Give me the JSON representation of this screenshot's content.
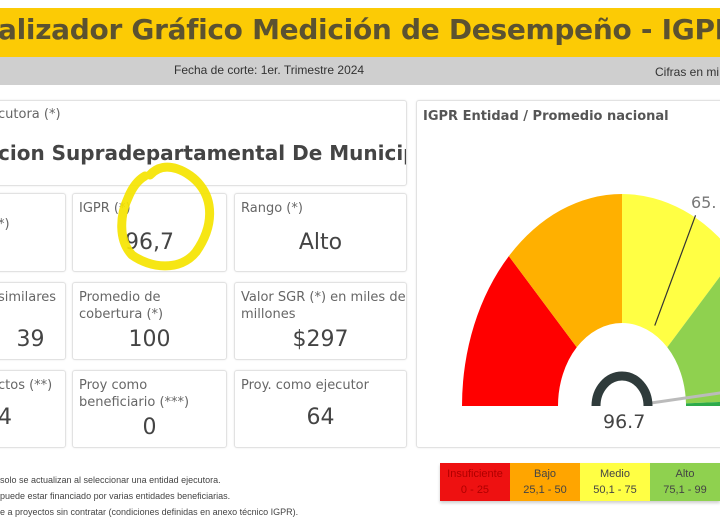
{
  "header": {
    "title": "alizador Gráfico Medición de Desempeño - IGPR",
    "cutoff": "Fecha de corte: 1er. Trimestre 2024",
    "figures_note": "Cifras en mi"
  },
  "entity": {
    "label": "cutora (*)",
    "name": "cion Supradepartamental De Municipi..."
  },
  "cards": [
    {
      "label": "*)",
      "value": ""
    },
    {
      "label": "IGPR (*)",
      "value": "96,7"
    },
    {
      "label": "Rango (*)",
      "value": "Alto"
    },
    {
      "label": "similares",
      "value": "39"
    },
    {
      "label": "Promedio de cobertura (*)",
      "value": "100"
    },
    {
      "label": "Valor SGR (*) en miles de millones",
      "value": "$297"
    },
    {
      "label": "ctos (**)",
      "value": "4"
    },
    {
      "label": "Proy como beneficiario (***)",
      "value": "0"
    },
    {
      "label": "Proy. como ejecutor",
      "value": "64"
    }
  ],
  "gauge": {
    "title": "IGPR Entidad / Promedio nacional",
    "value": 96.7,
    "value_label": "96.7",
    "national_average_label": "65.",
    "min": 0,
    "max": 100,
    "bands": [
      {
        "from": 0,
        "to": 25,
        "color": "#ff0000"
      },
      {
        "from": 25,
        "to": 50,
        "color": "#ffb000"
      },
      {
        "from": 50,
        "to": 75,
        "color": "#ffff44"
      },
      {
        "from": 75,
        "to": 99,
        "color": "#8fd14f"
      },
      {
        "from": 99,
        "to": 100,
        "color": "#2daa4a"
      }
    ]
  },
  "notes": [
    "solo se actualizan al seleccionar una entidad ejecutora.",
    "puede estar financiado por varias entidades beneficiarias.",
    "e a proyectos sin contratar (condiciones definidas en anexo técnico IGPR)."
  ],
  "legend": [
    {
      "name": "Insuficiente",
      "range": "0 - 25",
      "color": "#ee1111",
      "text": "#b00000"
    },
    {
      "name": "Bajo",
      "range": "25,1 - 50",
      "color": "#ffa500",
      "text": "#444"
    },
    {
      "name": "Medio",
      "range": "50,1 - 75",
      "color": "#ffff44",
      "text": "#444"
    },
    {
      "name": "Alto",
      "range": "75,1 - 99",
      "color": "#8fd14f",
      "text": "#444"
    }
  ],
  "colors": {
    "header": "#fccb05",
    "highlight": "#f5e400"
  }
}
